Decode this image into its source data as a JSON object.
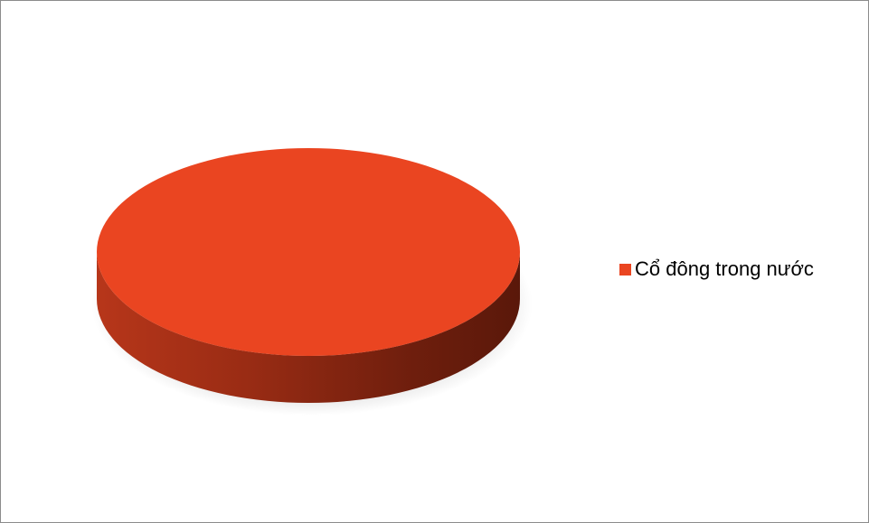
{
  "chart_data": {
    "type": "pie",
    "style": "3d",
    "slices": [
      {
        "label": "Cổ đông trong nước",
        "value": 100,
        "color": "#EA4521"
      }
    ],
    "legend": {
      "position": "right",
      "entries": [
        "Cổ đông trong nước"
      ]
    }
  }
}
